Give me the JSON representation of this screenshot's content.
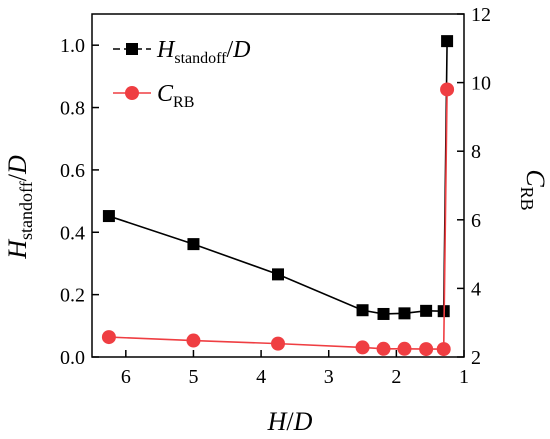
{
  "chart_data": {
    "type": "line",
    "xlabel": {
      "main": "H",
      "sep": "/",
      "den": "D"
    },
    "ylabel_left": {
      "main": "H",
      "sub": "standoff",
      "sep": "/",
      "den": "D"
    },
    "ylabel_right": {
      "main": "C",
      "sub": "RB"
    },
    "x_axis": {
      "range": [
        6.5,
        1.0
      ],
      "reversed": true,
      "ticks": [
        6,
        5,
        4,
        3,
        2,
        1
      ]
    },
    "y_left": {
      "range": [
        0.0,
        1.1
      ],
      "ticks": [
        0.0,
        0.2,
        0.4,
        0.6,
        0.8,
        1.0
      ],
      "tick_labels": [
        "0.0",
        "0.2",
        "0.4",
        "0.6",
        "0.8",
        "1.0"
      ]
    },
    "y_right": {
      "range": [
        2,
        12
      ],
      "ticks": [
        2,
        4,
        6,
        8,
        10,
        12
      ]
    },
    "grid": false,
    "legend_position": "top-left",
    "series": [
      {
        "name": {
          "main": "H",
          "sub": "standoff",
          "sep": "/",
          "den": "D"
        },
        "axis": "left",
        "color": "#000000",
        "marker": "square",
        "x": [
          6.25,
          5.0,
          3.75,
          2.5,
          2.19,
          1.88,
          1.56,
          1.3,
          1.25
        ],
        "y": [
          0.452,
          0.362,
          0.265,
          0.15,
          0.138,
          0.14,
          0.148,
          0.147,
          1.013
        ]
      },
      {
        "name": {
          "main": "C",
          "sub": "RB"
        },
        "axis": "right",
        "color": "#ef3e42",
        "marker": "circle",
        "x": [
          6.25,
          5.0,
          3.75,
          2.5,
          2.19,
          1.88,
          1.56,
          1.3,
          1.25
        ],
        "y": [
          2.58,
          2.48,
          2.39,
          2.28,
          2.24,
          2.24,
          2.23,
          2.23,
          9.8
        ]
      }
    ]
  }
}
